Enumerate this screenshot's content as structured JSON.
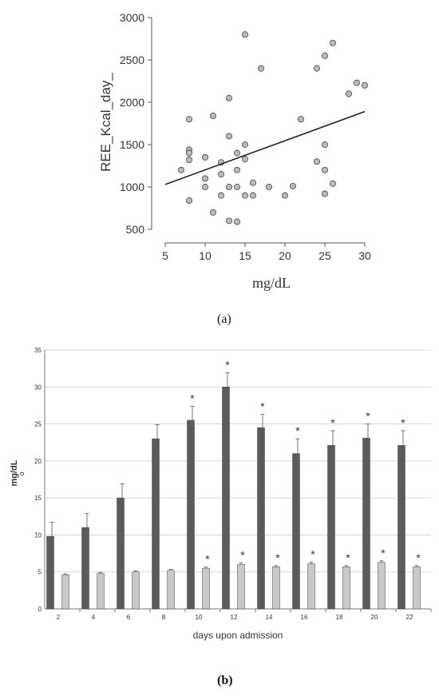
{
  "panels": {
    "a_label": "(a)",
    "b_label": "(b)"
  },
  "chart_data": [
    {
      "type": "scatter",
      "xlabel": "mg/dL",
      "ylabel": "REE_Kcal_day_",
      "xlim": [
        5,
        30
      ],
      "ylim": [
        500,
        3000
      ],
      "xticks": [
        "5",
        "10",
        "15",
        "20",
        "25",
        "30"
      ],
      "yticks": [
        "500",
        "1000",
        "1500",
        "2000",
        "2500",
        "3000"
      ],
      "grid": false,
      "point_color": "#bbbbbb",
      "points": [
        {
          "x": 7,
          "y": 1200
        },
        {
          "x": 8,
          "y": 1800
        },
        {
          "x": 8,
          "y": 1440
        },
        {
          "x": 8,
          "y": 1400
        },
        {
          "x": 8,
          "y": 1320
        },
        {
          "x": 8,
          "y": 840
        },
        {
          "x": 10,
          "y": 1350
        },
        {
          "x": 10,
          "y": 1100
        },
        {
          "x": 10,
          "y": 1000
        },
        {
          "x": 11,
          "y": 1840
        },
        {
          "x": 11,
          "y": 700
        },
        {
          "x": 12,
          "y": 1290
        },
        {
          "x": 12,
          "y": 1150
        },
        {
          "x": 12,
          "y": 900
        },
        {
          "x": 13,
          "y": 2050
        },
        {
          "x": 13,
          "y": 1600
        },
        {
          "x": 13,
          "y": 1000
        },
        {
          "x": 13,
          "y": 600
        },
        {
          "x": 14,
          "y": 1400
        },
        {
          "x": 14,
          "y": 1200
        },
        {
          "x": 14,
          "y": 1000
        },
        {
          "x": 14,
          "y": 590
        },
        {
          "x": 15,
          "y": 2800
        },
        {
          "x": 15,
          "y": 1500
        },
        {
          "x": 15,
          "y": 1330
        },
        {
          "x": 15,
          "y": 900
        },
        {
          "x": 16,
          "y": 1050
        },
        {
          "x": 16,
          "y": 900
        },
        {
          "x": 17,
          "y": 2400
        },
        {
          "x": 18,
          "y": 1000
        },
        {
          "x": 20,
          "y": 900
        },
        {
          "x": 21,
          "y": 1010
        },
        {
          "x": 22,
          "y": 1800
        },
        {
          "x": 24,
          "y": 2400
        },
        {
          "x": 24,
          "y": 1300
        },
        {
          "x": 25,
          "y": 2550
        },
        {
          "x": 25,
          "y": 1500
        },
        {
          "x": 25,
          "y": 1200
        },
        {
          "x": 25,
          "y": 920
        },
        {
          "x": 26,
          "y": 2700
        },
        {
          "x": 26,
          "y": 1040
        },
        {
          "x": 28,
          "y": 2100
        },
        {
          "x": 29,
          "y": 2230
        },
        {
          "x": 30,
          "y": 2200
        }
      ],
      "trendline": {
        "x": [
          5,
          30
        ],
        "y": [
          1030,
          1890
        ]
      }
    },
    {
      "type": "bar",
      "xlabel": "days upon admission",
      "ylabel": "mg/dL",
      "ylabel_extra": "o",
      "ylim": [
        0,
        35
      ],
      "yticks": [
        "0",
        "5",
        "10",
        "15",
        "20",
        "25",
        "30",
        "35"
      ],
      "categories": [
        "2",
        "4",
        "6",
        "8",
        "10",
        "12",
        "14",
        "16",
        "18",
        "20",
        "22"
      ],
      "series": [
        {
          "color": "#5b5b5b",
          "values": [
            9.8,
            11.0,
            15.0,
            23.0,
            25.5,
            30.0,
            24.5,
            21.0,
            22.1,
            23.1,
            22.1
          ],
          "errors": [
            1.9,
            1.9,
            1.9,
            1.9,
            1.9,
            1.9,
            1.8,
            2.0,
            2.0,
            1.9,
            2.0
          ],
          "significant": [
            false,
            false,
            false,
            false,
            true,
            true,
            true,
            true,
            true,
            true,
            true
          ]
        },
        {
          "color": "#c8c8c8",
          "values": [
            4.6,
            4.8,
            5.0,
            5.2,
            5.5,
            6.0,
            5.7,
            6.1,
            5.7,
            6.3,
            5.7
          ],
          "errors": [
            0.15,
            0.15,
            0.15,
            0.15,
            0.15,
            0.2,
            0.15,
            0.2,
            0.15,
            0.2,
            0.15
          ],
          "significant": [
            false,
            false,
            false,
            false,
            true,
            true,
            true,
            true,
            true,
            true,
            true
          ]
        }
      ],
      "significance_marker": "*"
    }
  ]
}
